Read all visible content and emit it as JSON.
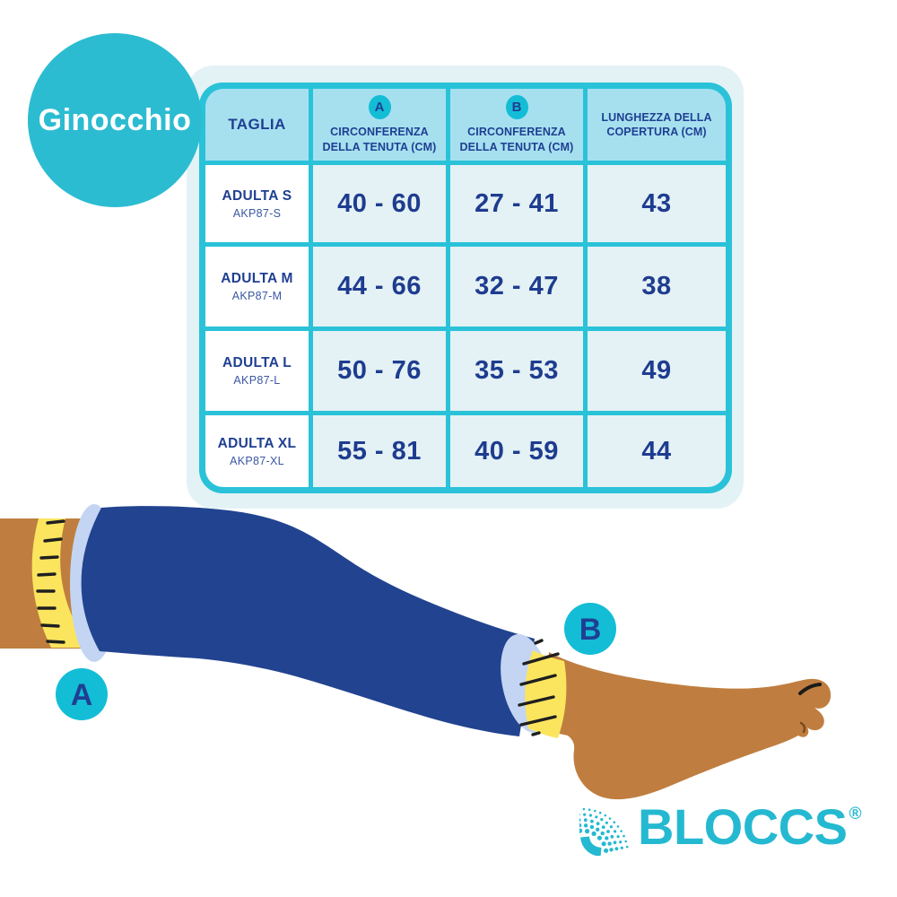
{
  "badge": {
    "label": "Ginocchio"
  },
  "table": {
    "columns": [
      {
        "marker": "",
        "label": "TAGLIA"
      },
      {
        "marker": "A",
        "label": "CIRCONFERENZA DELLA TENUTA (CM)"
      },
      {
        "marker": "B",
        "label": "CIRCONFERENZA DELLA TENUTA (CM)"
      },
      {
        "marker": "",
        "label": "LUNGHEZZA DELLA COPERTURA (CM)"
      }
    ],
    "rows": [
      {
        "size": "ADULTA S",
        "code": "AKP87-S",
        "a": "40 - 60",
        "b": "27 - 41",
        "length": "43"
      },
      {
        "size": "ADULTA M",
        "code": "AKP87-M",
        "a": "44 - 66",
        "b": "32 - 47",
        "length": "38"
      },
      {
        "size": "ADULTA L",
        "code": "AKP87-L",
        "a": "50 - 76",
        "b": "35 - 53",
        "length": "49"
      },
      {
        "size": "ADULTA XL",
        "code": "AKP87-XL",
        "a": "55 - 81",
        "b": "40 - 59",
        "length": "44"
      }
    ]
  },
  "diagram": {
    "marker_a": "A",
    "marker_b": "B"
  },
  "logo": {
    "brand": "BLOCCS",
    "registered": "®"
  },
  "colors": {
    "teal_border": "#2ac2d8",
    "teal_badge": "#13bdd6",
    "knee_circle": "#2cbcd1",
    "navy_text": "#1f3f92",
    "header_bg": "#a6e0ef",
    "value_cell_bg": "#e4f1f5",
    "panel_bg": "#e3f2f5",
    "skin": "#bf7e3f",
    "cover_blue": "#224390",
    "rim_blue": "#c3d5f2",
    "tape_yellow": "#fbe55e",
    "logo_teal": "#25b9d1"
  }
}
